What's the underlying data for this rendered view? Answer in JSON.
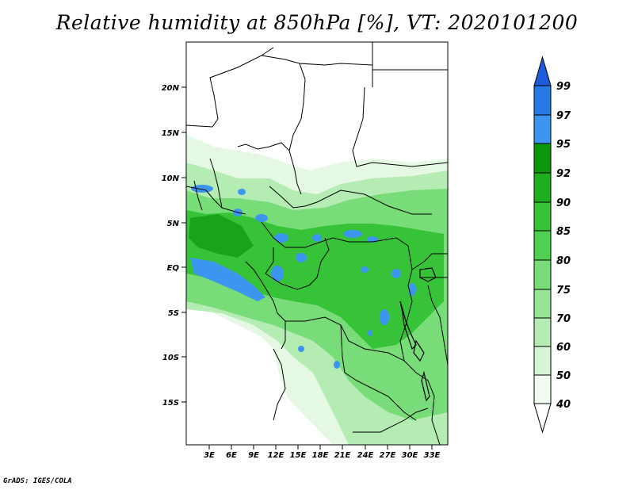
{
  "title": "Relative humidity at 850hPa [%], VT: 2020101200",
  "credit": "GrADS: IGES/COLA",
  "map": {
    "lat_labels": [
      "20N",
      "15N",
      "10N",
      "5N",
      "EQ",
      "5S",
      "10S",
      "15S"
    ],
    "lon_labels": [
      "3E",
      "6E",
      "9E",
      "12E",
      "15E",
      "18E",
      "21E",
      "24E",
      "27E",
      "30E",
      "33E"
    ]
  },
  "colorbar": {
    "levels": [
      "40",
      "50",
      "60",
      "70",
      "75",
      "80",
      "85",
      "90",
      "92",
      "95",
      "97",
      "99"
    ],
    "colors": {
      "40-50": "#f0fcf0",
      "50-60": "#d6f5d6",
      "60-70": "#b4ecb4",
      "70-75": "#96e496",
      "75-80": "#78dc78",
      "80-85": "#50d050",
      "85-90": "#37c337",
      "90-92": "#1eaf1e",
      "92-95": "#0c960c",
      "95-97": "#3c96f0",
      "97-99": "#2878e6",
      "99+": "#1e5adc"
    }
  }
}
